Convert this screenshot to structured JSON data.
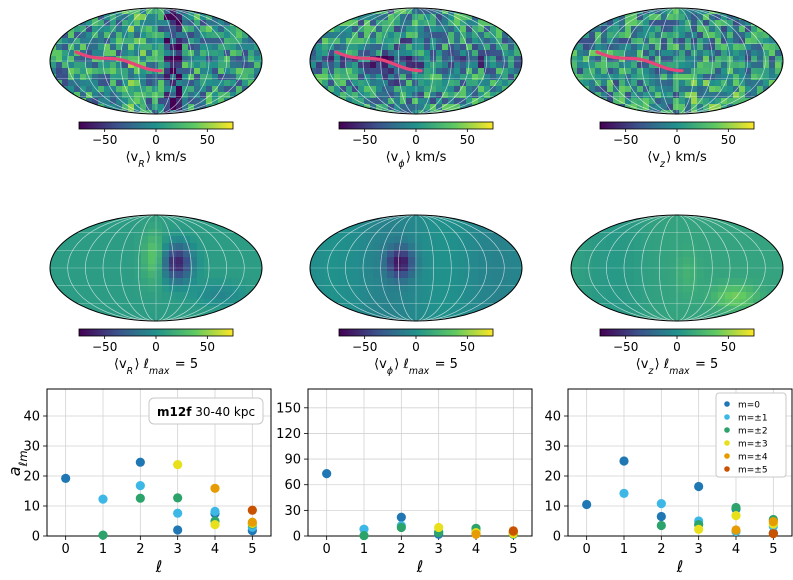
{
  "sky_maps": [
    {
      "colorbar_label": "⟨v_R⟩ km/s",
      "kind": "data",
      "feature": "stream-track"
    },
    {
      "colorbar_label": "⟨v_ϕ⟩ km/s",
      "kind": "data",
      "feature": "stream-track"
    },
    {
      "colorbar_label": "⟨v_z⟩ km/s",
      "kind": "data",
      "feature": "stream-track"
    },
    {
      "colorbar_label": "⟨v_R⟩ ℓ_max = 5",
      "kind": "model",
      "feature": "hot-cold-dipole"
    },
    {
      "colorbar_label": "⟨v_ϕ⟩ ℓ_max = 5",
      "kind": "model",
      "feature": "cold-spot"
    },
    {
      "colorbar_label": "⟨v_z⟩ ℓ_max = 5",
      "kind": "model",
      "feature": "warm-lobe"
    }
  ],
  "colorbar": {
    "ticks": [
      "−50",
      "0",
      "50"
    ],
    "tick_values": [
      -50,
      0,
      50
    ],
    "range": [
      -75,
      75
    ],
    "colormap": [
      "#440154",
      "#3b528b",
      "#21918c",
      "#5ec962",
      "#fde725"
    ]
  },
  "chart_data": [
    {
      "type": "scatter",
      "xlabel": "ℓ",
      "ylabel": "a_ℓm",
      "x_ticks": [
        "0",
        "1",
        "2",
        "3",
        "4",
        "5"
      ],
      "y_ticks": [
        "0",
        "10",
        "20",
        "30",
        "40"
      ],
      "ylim": [
        0,
        49
      ],
      "annotation": {
        "bold": "m12f",
        "text": " 30-40 kpc"
      },
      "series": [
        {
          "name": "m=0",
          "color": "#1f77b4",
          "points": [
            [
              0,
              19.2
            ],
            [
              2,
              24.6
            ],
            [
              3,
              2.0
            ],
            [
              4,
              7.5
            ],
            [
              5,
              1.8
            ]
          ]
        },
        {
          "name": "m=±1",
          "color": "#3db8e6",
          "points": [
            [
              1,
              12.3
            ],
            [
              2,
              16.8
            ],
            [
              3,
              7.6
            ],
            [
              4,
              8.2
            ],
            [
              5,
              2.9
            ]
          ]
        },
        {
          "name": "m=±2",
          "color": "#2ca36a",
          "points": [
            [
              1,
              0.3
            ],
            [
              2,
              12.6
            ],
            [
              3,
              12.7
            ],
            [
              4,
              5.0
            ],
            [
              5,
              4.0
            ]
          ]
        },
        {
          "name": "m=±3",
          "color": "#e8e01a",
          "points": [
            [
              3,
              23.8
            ],
            [
              4,
              3.8
            ],
            [
              5,
              4.2
            ]
          ]
        },
        {
          "name": "m=±4",
          "color": "#e69b00",
          "points": [
            [
              4,
              15.9
            ],
            [
              5,
              4.6
            ]
          ]
        },
        {
          "name": "m=±5",
          "color": "#c85200",
          "points": [
            [
              5,
              8.6
            ]
          ]
        }
      ]
    },
    {
      "type": "scatter",
      "xlabel": "ℓ",
      "ylabel": "",
      "x_ticks": [
        "0",
        "1",
        "2",
        "3",
        "4",
        "5"
      ],
      "y_ticks": [
        "0",
        "30",
        "60",
        "90",
        "120",
        "150"
      ],
      "ylim": [
        0,
        172
      ],
      "series": [
        {
          "name": "m=0",
          "color": "#1f77b4",
          "points": [
            [
              0,
              73
            ],
            [
              2,
              22
            ],
            [
              3,
              2
            ],
            [
              4,
              3
            ],
            [
              5,
              4
            ]
          ]
        },
        {
          "name": "m=±1",
          "color": "#3db8e6",
          "points": [
            [
              1,
              8
            ],
            [
              2,
              12
            ],
            [
              3,
              5
            ],
            [
              4,
              6
            ],
            [
              5,
              3
            ]
          ]
        },
        {
          "name": "m=±2",
          "color": "#2ca36a",
          "points": [
            [
              1,
              0.5
            ],
            [
              2,
              10
            ],
            [
              3,
              4
            ],
            [
              4,
              9
            ],
            [
              5,
              2
            ]
          ]
        },
        {
          "name": "m=±3",
          "color": "#e8e01a",
          "points": [
            [
              3,
              10
            ],
            [
              4,
              4
            ],
            [
              5,
              3
            ]
          ]
        },
        {
          "name": "m=±4",
          "color": "#e69b00",
          "points": [
            [
              4,
              2
            ],
            [
              5,
              5
            ]
          ]
        },
        {
          "name": "m=±5",
          "color": "#c85200",
          "points": [
            [
              5,
              6
            ]
          ]
        }
      ]
    },
    {
      "type": "scatter",
      "xlabel": "ℓ",
      "ylabel": "",
      "x_ticks": [
        "0",
        "1",
        "2",
        "3",
        "4",
        "5"
      ],
      "y_ticks": [
        "0",
        "10",
        "20",
        "30",
        "40"
      ],
      "ylim": [
        0,
        49
      ],
      "legend": {
        "location": "upper right",
        "entries": [
          "m=0",
          "m=±1",
          "m=±2",
          "m=±3",
          "m=±4",
          "m=±5"
        ]
      },
      "series": [
        {
          "name": "m=0",
          "color": "#1f77b4",
          "points": [
            [
              0,
              10.5
            ],
            [
              1,
              25.0
            ],
            [
              2,
              6.5
            ],
            [
              3,
              16.5
            ],
            [
              4,
              9.0
            ],
            [
              5,
              1.0
            ]
          ]
        },
        {
          "name": "m=±1",
          "color": "#3db8e6",
          "points": [
            [
              1,
              14.2
            ],
            [
              2,
              10.8
            ],
            [
              3,
              5.0
            ],
            [
              4,
              1.5
            ],
            [
              5,
              3.2
            ]
          ]
        },
        {
          "name": "m=±2",
          "color": "#2ca36a",
          "points": [
            [
              2,
              3.5
            ],
            [
              3,
              3.8
            ],
            [
              4,
              9.5
            ],
            [
              5,
              5.5
            ]
          ]
        },
        {
          "name": "m=±3",
          "color": "#e8e01a",
          "points": [
            [
              3,
              2.2
            ],
            [
              4,
              6.8
            ],
            [
              5,
              4.0
            ]
          ]
        },
        {
          "name": "m=±4",
          "color": "#e69b00",
          "points": [
            [
              4,
              2.0
            ],
            [
              5,
              4.8
            ]
          ]
        },
        {
          "name": "m=±5",
          "color": "#c85200",
          "points": [
            [
              5,
              0.8
            ]
          ]
        }
      ]
    }
  ]
}
